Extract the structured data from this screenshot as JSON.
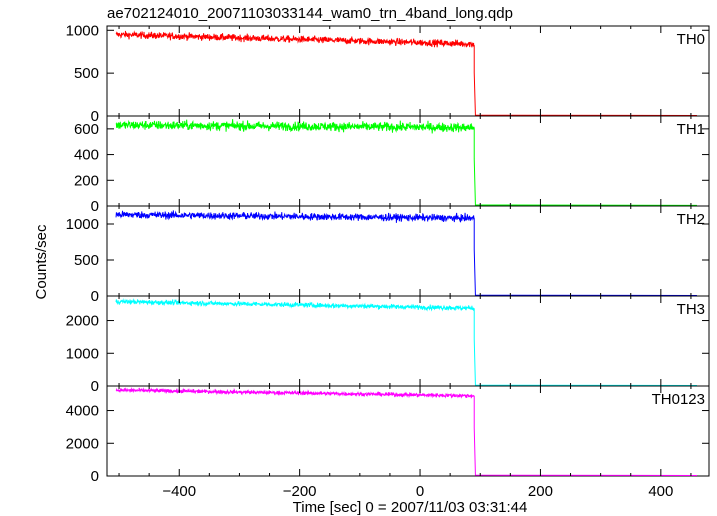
{
  "chart_data": {
    "type": "line",
    "title": "ae702124010_20071103033144_wam0_trn_4band_long.qdp",
    "xlabel": "Time [sec] 0 = 2007/11/03 03:31:44",
    "ylabel": "Counts/sec",
    "xlim": [
      -520,
      480
    ],
    "xticks": [
      -400,
      -200,
      0,
      200,
      400
    ],
    "xtick_labels": [
      "−400",
      "−200",
      "0",
      "200",
      "400"
    ],
    "grid": false,
    "step_time": 90,
    "x_start": -505,
    "x_end": 460,
    "panels": [
      {
        "name": "TH0",
        "color": "#ff0000",
        "ylim": [
          0,
          1050
        ],
        "yticks": [
          0,
          500,
          1000
        ],
        "start_level": 950,
        "pre_step_level": 840,
        "noise": 28,
        "post_level": 10
      },
      {
        "name": "TH1",
        "color": "#00ff00",
        "ylim": [
          0,
          700
        ],
        "yticks": [
          0,
          200,
          400,
          600
        ],
        "start_level": 630,
        "pre_step_level": 610,
        "noise": 25,
        "post_level": 8
      },
      {
        "name": "TH2",
        "color": "#0000ff",
        "ylim": [
          0,
          1250
        ],
        "yticks": [
          0,
          500,
          1000
        ],
        "start_level": 1130,
        "pre_step_level": 1080,
        "noise": 35,
        "post_level": 12
      },
      {
        "name": "TH3",
        "color": "#00ffff",
        "ylim": [
          0,
          2750
        ],
        "yticks": [
          0,
          1000,
          2000
        ],
        "start_level": 2580,
        "pre_step_level": 2380,
        "noise": 50,
        "post_level": 25
      },
      {
        "name": "TH0123",
        "color": "#ff00ff",
        "ylim": [
          0,
          5500
        ],
        "yticks": [
          0,
          2000,
          4000
        ],
        "start_level": 5250,
        "pre_step_level": 4900,
        "noise": 80,
        "post_level": 50
      }
    ]
  }
}
